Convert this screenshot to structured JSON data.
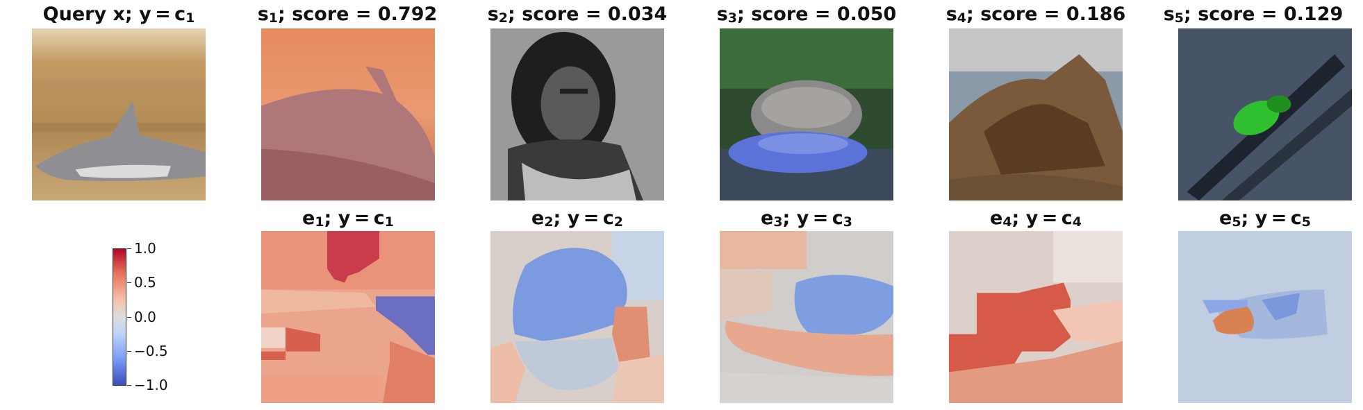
{
  "panels": {
    "query": {
      "prefix": "Query x; y = c",
      "sub": "1"
    },
    "samples": [
      {
        "name": "s",
        "sub": "1",
        "score_text": "; score = 0.792"
      },
      {
        "name": "s",
        "sub": "2",
        "score_text": "; score = 0.034"
      },
      {
        "name": "s",
        "sub": "3",
        "score_text": "; score = 0.050"
      },
      {
        "name": "s",
        "sub": "4",
        "score_text": "; score = 0.186"
      },
      {
        "name": "s",
        "sub": "5",
        "score_text": "; score = 0.129"
      }
    ],
    "explanations": [
      {
        "name": "e",
        "sub": "1",
        "mid": "; y = c",
        "sub2": "1"
      },
      {
        "name": "e",
        "sub": "2",
        "mid": "; y = c",
        "sub2": "2"
      },
      {
        "name": "e",
        "sub": "3",
        "mid": "; y = c",
        "sub2": "3"
      },
      {
        "name": "e",
        "sub": "4",
        "mid": "; y = c",
        "sub2": "4"
      },
      {
        "name": "e",
        "sub": "5",
        "mid": "; y = c",
        "sub2": "5"
      }
    ]
  },
  "colorbar": {
    "ticks": [
      "1.0",
      "0.5",
      "0.0",
      "−0.5",
      "−1.0"
    ],
    "range": [
      -1.0,
      1.0
    ],
    "colormap": "coolwarm",
    "colors": {
      "max": "#b40426",
      "mid": "#dddddd",
      "min": "#3b4cc0"
    }
  }
}
